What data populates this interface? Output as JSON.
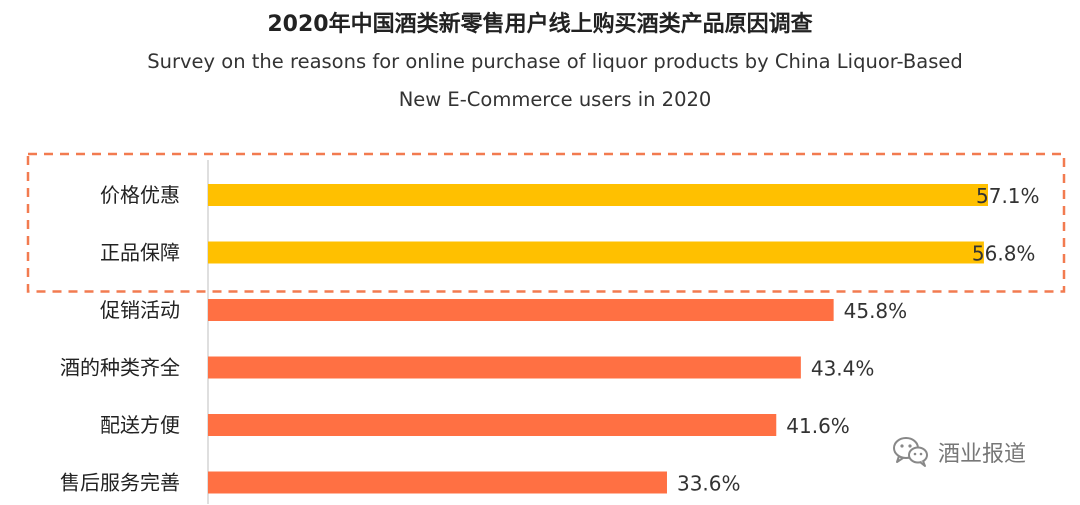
{
  "chart_data": {
    "type": "bar",
    "orientation": "horizontal",
    "title": "2020年中国酒类新零售用户线上购买酒类产品原因调查",
    "subtitle_line1": "Survey on the reasons for online purchase of liquor products by China Liquor-Based",
    "subtitle_line2": "New E-Commerce users in 2020",
    "categories": [
      "价格优惠",
      "正品保障",
      "促销活动",
      "酒的种类齐全",
      "配送方便",
      "售后服务完善"
    ],
    "values": [
      57.1,
      56.8,
      45.8,
      43.4,
      41.6,
      33.6
    ],
    "value_labels": [
      "57.1%",
      "56.8%",
      "45.8%",
      "43.4%",
      "41.6%",
      "33.6%"
    ],
    "highlighted": [
      true,
      true,
      false,
      false,
      false,
      false
    ],
    "xlim": [
      0,
      57.1
    ],
    "grid": false,
    "legend": "none"
  },
  "colors": {
    "highlight_bar": "#FFC000",
    "normal_bar": "#FF7043",
    "dashed_box": "#F27B50",
    "axis": "#BFBFBF"
  },
  "watermark": {
    "icon": "wechat-icon",
    "text": "酒业报道"
  }
}
